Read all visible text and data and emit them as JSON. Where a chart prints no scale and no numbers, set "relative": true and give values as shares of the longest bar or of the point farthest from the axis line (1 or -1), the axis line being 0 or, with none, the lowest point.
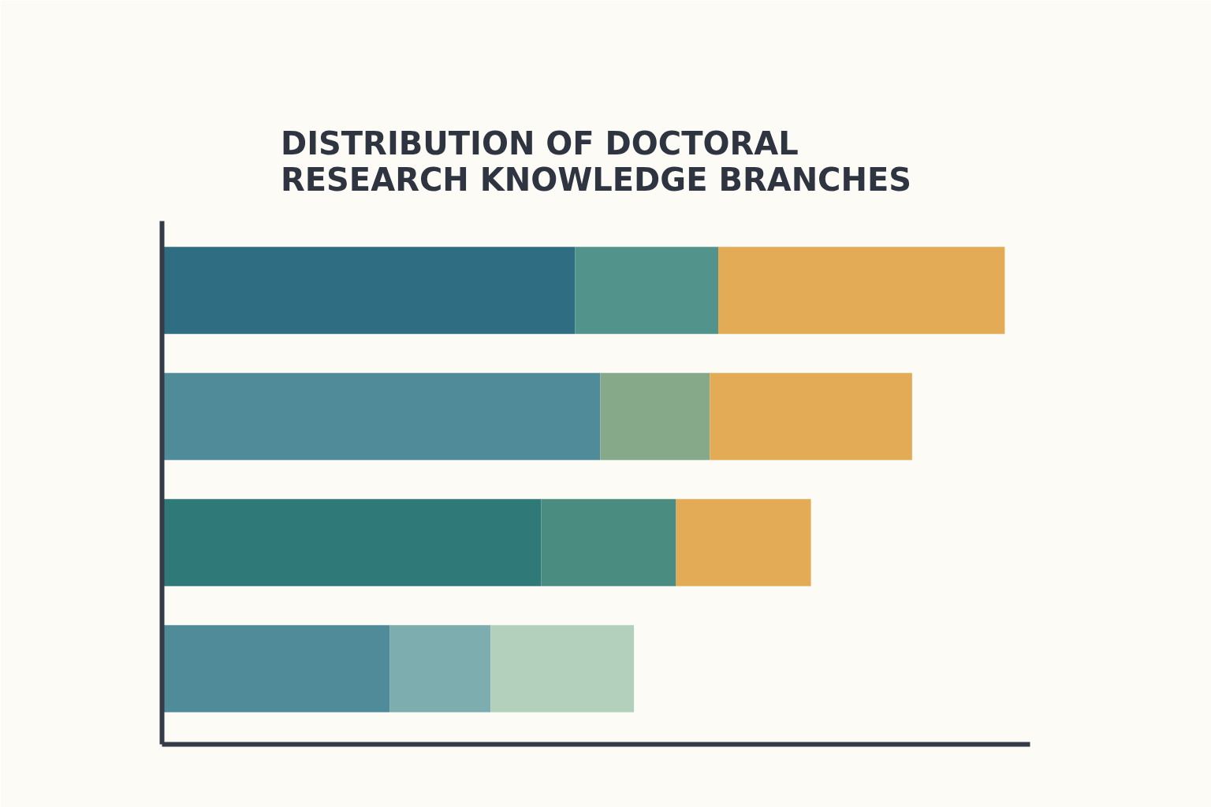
{
  "chart_data": {
    "type": "bar",
    "orientation": "horizontal",
    "stacked": true,
    "relative": true,
    "title": "DISTRIBUTION OF DOCTORAL RESEARCH KNOWLEDGE BRANCHES",
    "categories": [
      null,
      null,
      null,
      null
    ],
    "series": [
      {
        "colors": [
          "#2f6e82",
          "#4f8b99",
          "#2f7a78",
          "#4f8b99"
        ],
        "values": [
          0.49,
          0.52,
          0.45,
          0.27
        ]
      },
      {
        "colors": [
          "#52948c",
          "#86a98a",
          "#4a8c80",
          "#7eadb0"
        ],
        "values": [
          0.17,
          0.13,
          0.16,
          0.12
        ]
      },
      {
        "colors": [
          "#e3ab55",
          "#e3ab55",
          "#e3ab55",
          "#b2d0bc"
        ],
        "values": [
          0.34,
          0.24,
          0.16,
          0.17
        ]
      }
    ]
  }
}
